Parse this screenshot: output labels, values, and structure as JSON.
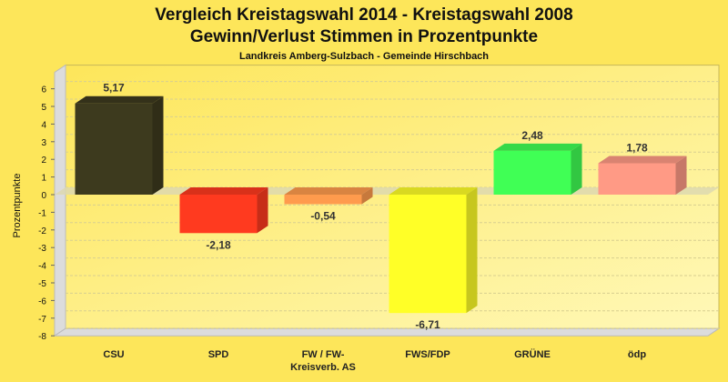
{
  "chart_data": {
    "type": "bar",
    "title": "Vergleich Kreistagswahl 2014 - Kreistagswahl 2008",
    "title_line2": "Gewinn/Verlust Stimmen in Prozentpunkte",
    "subtitle": "Landkreis Amberg-Sulzbach - Gemeinde Hirschbach",
    "xlabel": "",
    "ylabel": "Prozentpunkte",
    "ylim": [
      -8,
      6
    ],
    "yticks": [
      6,
      5,
      4,
      3,
      2,
      1,
      0,
      -1,
      -2,
      -3,
      -4,
      -5,
      -6,
      -7,
      -8
    ],
    "grid": true,
    "categories": [
      "CSU",
      "SPD",
      "FW / FW-\nKreisverb. AS",
      "FWS/FDP",
      "GRÜNE",
      "ödp"
    ],
    "values": [
      5.17,
      -2.18,
      -0.54,
      -6.71,
      2.48,
      1.78
    ],
    "value_labels": [
      "5,17",
      "-2,18",
      "-0,54",
      "-6,71",
      "2,48",
      "1,78"
    ],
    "colors": [
      "#3d3a1e",
      "#ff3a1f",
      "#ff9b4d",
      "#ffff27",
      "#40ff55",
      "#ff9a85"
    ]
  }
}
